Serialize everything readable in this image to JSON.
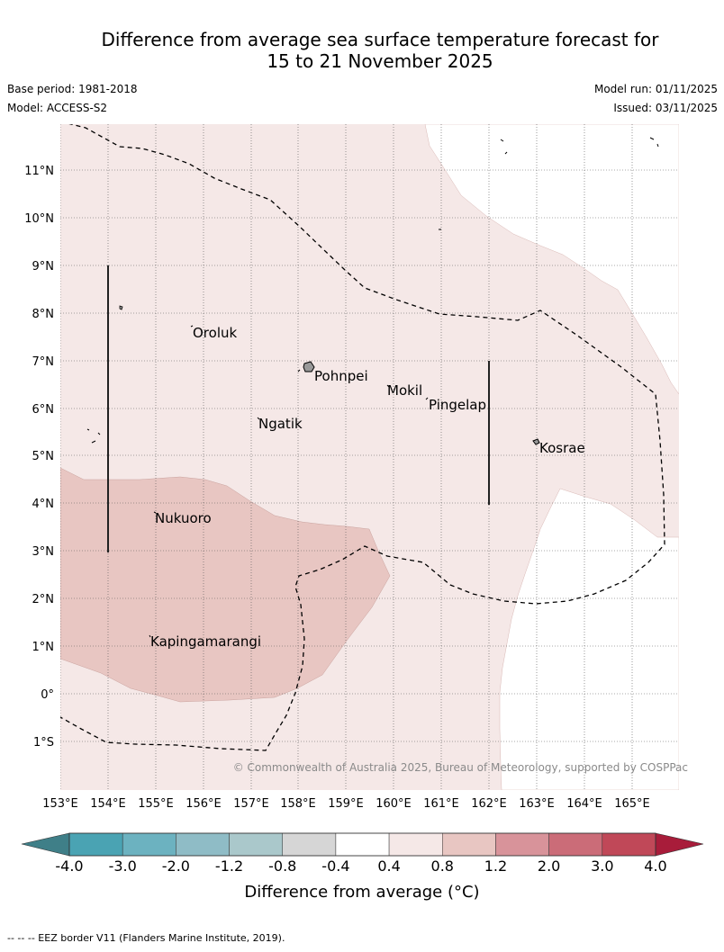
{
  "title_line1": "Difference from average sea surface temperature forecast for",
  "title_line2": "15 to 21 November 2025",
  "base_period": "Base period: 1981-2018",
  "model": "Model: ACCESS-S2",
  "model_run": "Model run: 01/11/2025",
  "issued": "Issued: 03/11/2025",
  "lat_labels": [
    "11°N",
    "10°N",
    "9°N",
    "8°N",
    "7°N",
    "6°N",
    "5°N",
    "4°N",
    "3°N",
    "2°N",
    "1°N",
    "0°",
    "1°S"
  ],
  "lon_labels": [
    "153°E",
    "154°E",
    "155°E",
    "156°E",
    "157°E",
    "158°E",
    "159°E",
    "160°E",
    "161°E",
    "162°E",
    "163°E",
    "164°E",
    "165°E"
  ],
  "places": {
    "oroluk": "Oroluk",
    "pohnpei": "Pohnpei",
    "mokil": "Mokil",
    "pingelap": "Pingelap",
    "ngatik": "Ngatik",
    "kosrae": "Kosrae",
    "nukuoro": "Nukuoro",
    "kapingamarangi": "Kapingamarangi"
  },
  "copyright": "© Commonwealth of Australia 2025, Bureau of Meteorology, supported by COSPPac",
  "colorbar": {
    "title": "Difference from average (°C)",
    "ticks": [
      "-4.0",
      "-3.0",
      "-2.0",
      "-1.2",
      "-0.8",
      "-0.4",
      "0.4",
      "0.8",
      "1.2",
      "2.0",
      "3.0",
      "4.0"
    ],
    "colors": [
      "#4aa3b3",
      "#6cb2c0",
      "#8fbcc6",
      "#aac8cb",
      "#d6d6d6",
      "#ffffff",
      "#f5e8e7",
      "#e8c6c2",
      "#d8939a",
      "#cb6c78",
      "#c04858"
    ],
    "under_color": "#3f7f88",
    "over_color": "#a81c3a"
  },
  "footnote": "--  --  -- EEZ border V11 (Flanders Marine Institute, 2019)."
}
